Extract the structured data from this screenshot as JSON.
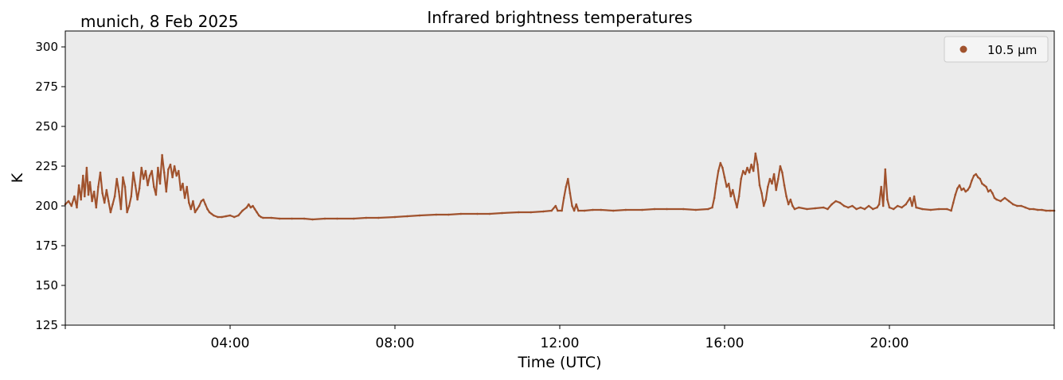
{
  "chart_data": {
    "type": "scatter",
    "title": "Infrared brightness temperatures",
    "subtitle": "munich, 8 Feb 2025",
    "xlabel": "Time (UTC)",
    "ylabel": "K",
    "x_unit": "hours UTC",
    "xlim": [
      0,
      24
    ],
    "ylim": [
      125,
      310
    ],
    "yticks": [
      125,
      150,
      175,
      200,
      225,
      250,
      275,
      300
    ],
    "xticks": [
      {
        "value": 4,
        "label": "04:00"
      },
      {
        "value": 8,
        "label": "08:00"
      },
      {
        "value": 12,
        "label": "12:00"
      },
      {
        "value": 16,
        "label": "16:00"
      },
      {
        "value": 20,
        "label": "20:00"
      }
    ],
    "grid": false,
    "legend_position": "top-right",
    "background_color": "#ebebeb",
    "series": [
      {
        "name": "10.5 µm",
        "color": "#a0522d",
        "points": [
          [
            0.0,
            201
          ],
          [
            0.08,
            203
          ],
          [
            0.15,
            200
          ],
          [
            0.22,
            206
          ],
          [
            0.28,
            199
          ],
          [
            0.33,
            213
          ],
          [
            0.38,
            204
          ],
          [
            0.43,
            219
          ],
          [
            0.47,
            206
          ],
          [
            0.52,
            224
          ],
          [
            0.56,
            207
          ],
          [
            0.6,
            215
          ],
          [
            0.65,
            203
          ],
          [
            0.7,
            209
          ],
          [
            0.75,
            199
          ],
          [
            0.8,
            212
          ],
          [
            0.85,
            221
          ],
          [
            0.9,
            208
          ],
          [
            0.95,
            202
          ],
          [
            1.0,
            210
          ],
          [
            1.05,
            203
          ],
          [
            1.1,
            196
          ],
          [
            1.15,
            201
          ],
          [
            1.2,
            206
          ],
          [
            1.25,
            217
          ],
          [
            1.3,
            209
          ],
          [
            1.35,
            198
          ],
          [
            1.4,
            218
          ],
          [
            1.45,
            212
          ],
          [
            1.5,
            196
          ],
          [
            1.55,
            200
          ],
          [
            1.6,
            206
          ],
          [
            1.65,
            221
          ],
          [
            1.7,
            213
          ],
          [
            1.75,
            204
          ],
          [
            1.8,
            211
          ],
          [
            1.85,
            224
          ],
          [
            1.9,
            217
          ],
          [
            1.95,
            222
          ],
          [
            2.0,
            213
          ],
          [
            2.05,
            219
          ],
          [
            2.1,
            222
          ],
          [
            2.15,
            212
          ],
          [
            2.2,
            207
          ],
          [
            2.25,
            224
          ],
          [
            2.3,
            214
          ],
          [
            2.35,
            232
          ],
          [
            2.4,
            221
          ],
          [
            2.45,
            209
          ],
          [
            2.5,
            223
          ],
          [
            2.55,
            226
          ],
          [
            2.6,
            218
          ],
          [
            2.65,
            225
          ],
          [
            2.7,
            219
          ],
          [
            2.75,
            222
          ],
          [
            2.8,
            210
          ],
          [
            2.85,
            214
          ],
          [
            2.9,
            205
          ],
          [
            2.95,
            212
          ],
          [
            3.0,
            202
          ],
          [
            3.05,
            198
          ],
          [
            3.1,
            203
          ],
          [
            3.15,
            196
          ],
          [
            3.2,
            198
          ],
          [
            3.25,
            200
          ],
          [
            3.3,
            203
          ],
          [
            3.35,
            204
          ],
          [
            3.4,
            201
          ],
          [
            3.45,
            198
          ],
          [
            3.5,
            196
          ],
          [
            3.55,
            195
          ],
          [
            3.6,
            194
          ],
          [
            3.7,
            193
          ],
          [
            3.8,
            193
          ],
          [
            3.9,
            193.5
          ],
          [
            4.0,
            194
          ],
          [
            4.1,
            193
          ],
          [
            4.2,
            194
          ],
          [
            4.3,
            197
          ],
          [
            4.4,
            199
          ],
          [
            4.45,
            201
          ],
          [
            4.5,
            199
          ],
          [
            4.55,
            200
          ],
          [
            4.6,
            198
          ],
          [
            4.65,
            196
          ],
          [
            4.7,
            194
          ],
          [
            4.75,
            193
          ],
          [
            4.8,
            192.5
          ],
          [
            5.0,
            192.5
          ],
          [
            5.2,
            192
          ],
          [
            5.5,
            192
          ],
          [
            5.8,
            192
          ],
          [
            6.0,
            191.5
          ],
          [
            6.3,
            192
          ],
          [
            6.6,
            192
          ],
          [
            7.0,
            192
          ],
          [
            7.3,
            192.5
          ],
          [
            7.6,
            192.5
          ],
          [
            8.0,
            193
          ],
          [
            8.3,
            193.5
          ],
          [
            8.6,
            194
          ],
          [
            9.0,
            194.5
          ],
          [
            9.3,
            194.5
          ],
          [
            9.6,
            195
          ],
          [
            10.0,
            195
          ],
          [
            10.3,
            195
          ],
          [
            10.6,
            195.5
          ],
          [
            11.0,
            196
          ],
          [
            11.3,
            196
          ],
          [
            11.6,
            196.5
          ],
          [
            11.8,
            197
          ],
          [
            11.9,
            200
          ],
          [
            11.95,
            197
          ],
          [
            12.05,
            197
          ],
          [
            12.1,
            205
          ],
          [
            12.15,
            212
          ],
          [
            12.2,
            217
          ],
          [
            12.25,
            208
          ],
          [
            12.3,
            200
          ],
          [
            12.35,
            197
          ],
          [
            12.4,
            201
          ],
          [
            12.45,
            197
          ],
          [
            12.6,
            197
          ],
          [
            12.8,
            197.5
          ],
          [
            13.0,
            197.5
          ],
          [
            13.3,
            197
          ],
          [
            13.6,
            197.5
          ],
          [
            14.0,
            197.5
          ],
          [
            14.3,
            198
          ],
          [
            14.6,
            198
          ],
          [
            15.0,
            198
          ],
          [
            15.3,
            197.5
          ],
          [
            15.6,
            198
          ],
          [
            15.7,
            199
          ],
          [
            15.75,
            205
          ],
          [
            15.8,
            214
          ],
          [
            15.85,
            222
          ],
          [
            15.9,
            227
          ],
          [
            15.95,
            224
          ],
          [
            16.0,
            218
          ],
          [
            16.05,
            212
          ],
          [
            16.1,
            214
          ],
          [
            16.15,
            206
          ],
          [
            16.2,
            210
          ],
          [
            16.25,
            204
          ],
          [
            16.3,
            199
          ],
          [
            16.35,
            206
          ],
          [
            16.4,
            217
          ],
          [
            16.45,
            222
          ],
          [
            16.5,
            220
          ],
          [
            16.55,
            224
          ],
          [
            16.6,
            221
          ],
          [
            16.65,
            226
          ],
          [
            16.7,
            222
          ],
          [
            16.75,
            233
          ],
          [
            16.8,
            226
          ],
          [
            16.85,
            213
          ],
          [
            16.9,
            208
          ],
          [
            16.95,
            200
          ],
          [
            17.0,
            204
          ],
          [
            17.05,
            212
          ],
          [
            17.1,
            217
          ],
          [
            17.15,
            214
          ],
          [
            17.2,
            220
          ],
          [
            17.25,
            210
          ],
          [
            17.3,
            217
          ],
          [
            17.35,
            225
          ],
          [
            17.4,
            221
          ],
          [
            17.45,
            213
          ],
          [
            17.5,
            206
          ],
          [
            17.55,
            201
          ],
          [
            17.6,
            204
          ],
          [
            17.65,
            200
          ],
          [
            17.7,
            198
          ],
          [
            17.8,
            199
          ],
          [
            18.0,
            198
          ],
          [
            18.2,
            198.5
          ],
          [
            18.4,
            199
          ],
          [
            18.5,
            198
          ],
          [
            18.6,
            201
          ],
          [
            18.7,
            203
          ],
          [
            18.8,
            202
          ],
          [
            18.9,
            200
          ],
          [
            19.0,
            199
          ],
          [
            19.1,
            200
          ],
          [
            19.2,
            198
          ],
          [
            19.3,
            199
          ],
          [
            19.4,
            198
          ],
          [
            19.5,
            200
          ],
          [
            19.6,
            198
          ],
          [
            19.7,
            199
          ],
          [
            19.75,
            201
          ],
          [
            19.8,
            212
          ],
          [
            19.85,
            200
          ],
          [
            19.9,
            223
          ],
          [
            19.95,
            204
          ],
          [
            20.0,
            199
          ],
          [
            20.1,
            198
          ],
          [
            20.2,
            200
          ],
          [
            20.3,
            199
          ],
          [
            20.4,
            201
          ],
          [
            20.5,
            205
          ],
          [
            20.55,
            200
          ],
          [
            20.6,
            206
          ],
          [
            20.65,
            199
          ],
          [
            20.8,
            198
          ],
          [
            21.0,
            197.5
          ],
          [
            21.2,
            198
          ],
          [
            21.4,
            198
          ],
          [
            21.5,
            197
          ],
          [
            21.55,
            202
          ],
          [
            21.6,
            207
          ],
          [
            21.65,
            211
          ],
          [
            21.7,
            213
          ],
          [
            21.75,
            210
          ],
          [
            21.8,
            211
          ],
          [
            21.85,
            209
          ],
          [
            21.9,
            210
          ],
          [
            21.95,
            212
          ],
          [
            22.0,
            216
          ],
          [
            22.05,
            219
          ],
          [
            22.1,
            220
          ],
          [
            22.15,
            218
          ],
          [
            22.2,
            217
          ],
          [
            22.25,
            214
          ],
          [
            22.3,
            213
          ],
          [
            22.35,
            212
          ],
          [
            22.4,
            209
          ],
          [
            22.45,
            210
          ],
          [
            22.5,
            208
          ],
          [
            22.55,
            205
          ],
          [
            22.6,
            204
          ],
          [
            22.7,
            203
          ],
          [
            22.8,
            205
          ],
          [
            22.9,
            203
          ],
          [
            23.0,
            201
          ],
          [
            23.1,
            200
          ],
          [
            23.2,
            200
          ],
          [
            23.3,
            199
          ],
          [
            23.4,
            198
          ],
          [
            23.5,
            198
          ],
          [
            23.6,
            197.5
          ],
          [
            23.7,
            197.5
          ],
          [
            23.8,
            197
          ],
          [
            23.9,
            197
          ],
          [
            24.0,
            197
          ]
        ]
      }
    ]
  }
}
